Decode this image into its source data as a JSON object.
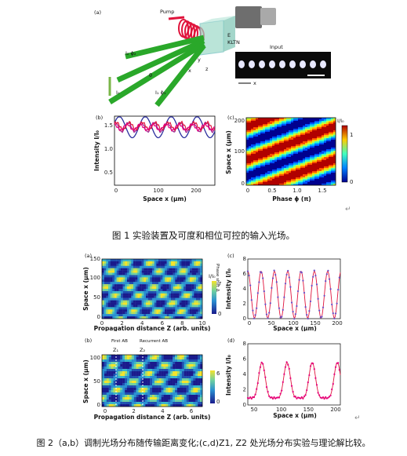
{
  "figure1": {
    "panel_a": {
      "label": "(a)",
      "pump": "Pump",
      "e_field": "E",
      "crystal": "KLTN",
      "input": "Input",
      "beam2": "I₂ ϕ₂",
      "beam0": "I₀",
      "beam1": "I₁ ϕ₁",
      "theta": "θ",
      "ax_x": "x",
      "ax_y": "y",
      "ax_z": "z",
      "inset_x": "x"
    },
    "panel_b": {
      "label": "(b)",
      "ylabel": "Intensity I/I₀",
      "xlabel": "Space  x (μm)",
      "xticks": [
        "0",
        "100",
        "200"
      ],
      "yticks": [
        "0.5",
        "1.0",
        "1.5"
      ]
    },
    "panel_c": {
      "label": "(c)",
      "ylabel": "Space  x (μm)",
      "xlabel": "Phase ϕ (π)",
      "xticks": [
        "0",
        "0.5",
        "1.0",
        "1.5"
      ],
      "yticks": [
        "0",
        "100",
        "200"
      ],
      "cbar_title": "I/I₀",
      "cbar_ticks": [
        "1",
        "0"
      ]
    },
    "caption": "图 1 实验装置及可度和相位可控的输入光场。",
    "return_mark": "↵"
  },
  "figure2": {
    "panel_a": {
      "label": "(a)",
      "ylabel": "Space x (μm)",
      "xlabel": "Propagation distance Z (arb. units)",
      "xticks": [
        "0",
        "2",
        "4",
        "6",
        "8",
        "10"
      ],
      "yticks": [
        "0",
        "50",
        "100",
        "150"
      ],
      "cbar_title": "I/I₀",
      "cbar_ticks": [
        "7",
        "0"
      ],
      "phase_note": "Phase shift Δ"
    },
    "panel_b": {
      "label": "(b)",
      "ylabel": "Space x (μm)",
      "xlabel": "Propagation distance Z (arb. units)",
      "xticks": [
        "0",
        "2",
        "4",
        "6"
      ],
      "yticks": [
        "0",
        "50",
        "100"
      ],
      "cbar_ticks": [
        "6",
        "0"
      ],
      "first_ab": "First AB",
      "recurrent_ab": "Recurrent AB",
      "z1": "Z₁",
      "z2": "Z₂"
    },
    "panel_c": {
      "label": "(c)",
      "ylabel": "Intensity I/I₀",
      "xlabel": "Space  x (μm)",
      "xticks": [
        "0",
        "50",
        "100",
        "150",
        "200"
      ],
      "yticks": [
        "0",
        "2",
        "4",
        "6",
        "8"
      ]
    },
    "panel_d": {
      "label": "(d)",
      "ylabel": "Intensity I/I₀",
      "xlabel": "Space  x (μm)",
      "xticks": [
        "50",
        "100",
        "150",
        "200"
      ],
      "yticks": [
        "0",
        "2",
        "4",
        "6",
        "8"
      ]
    },
    "caption": "图 2（a,b）调制光场分布随传输距离变化;(c,d)Z1, Z2 处光场分布实验与理论解比较。",
    "return_mark": "↵"
  },
  "colors": {
    "blue_curve": "#2b2f9e",
    "red_curve": "#e0143c",
    "magenta_curve": "#9b1f8c",
    "purple_curve": "#6a4bc4",
    "pink_curve": "#e6007e",
    "beam_green": "#2aa82a"
  }
}
